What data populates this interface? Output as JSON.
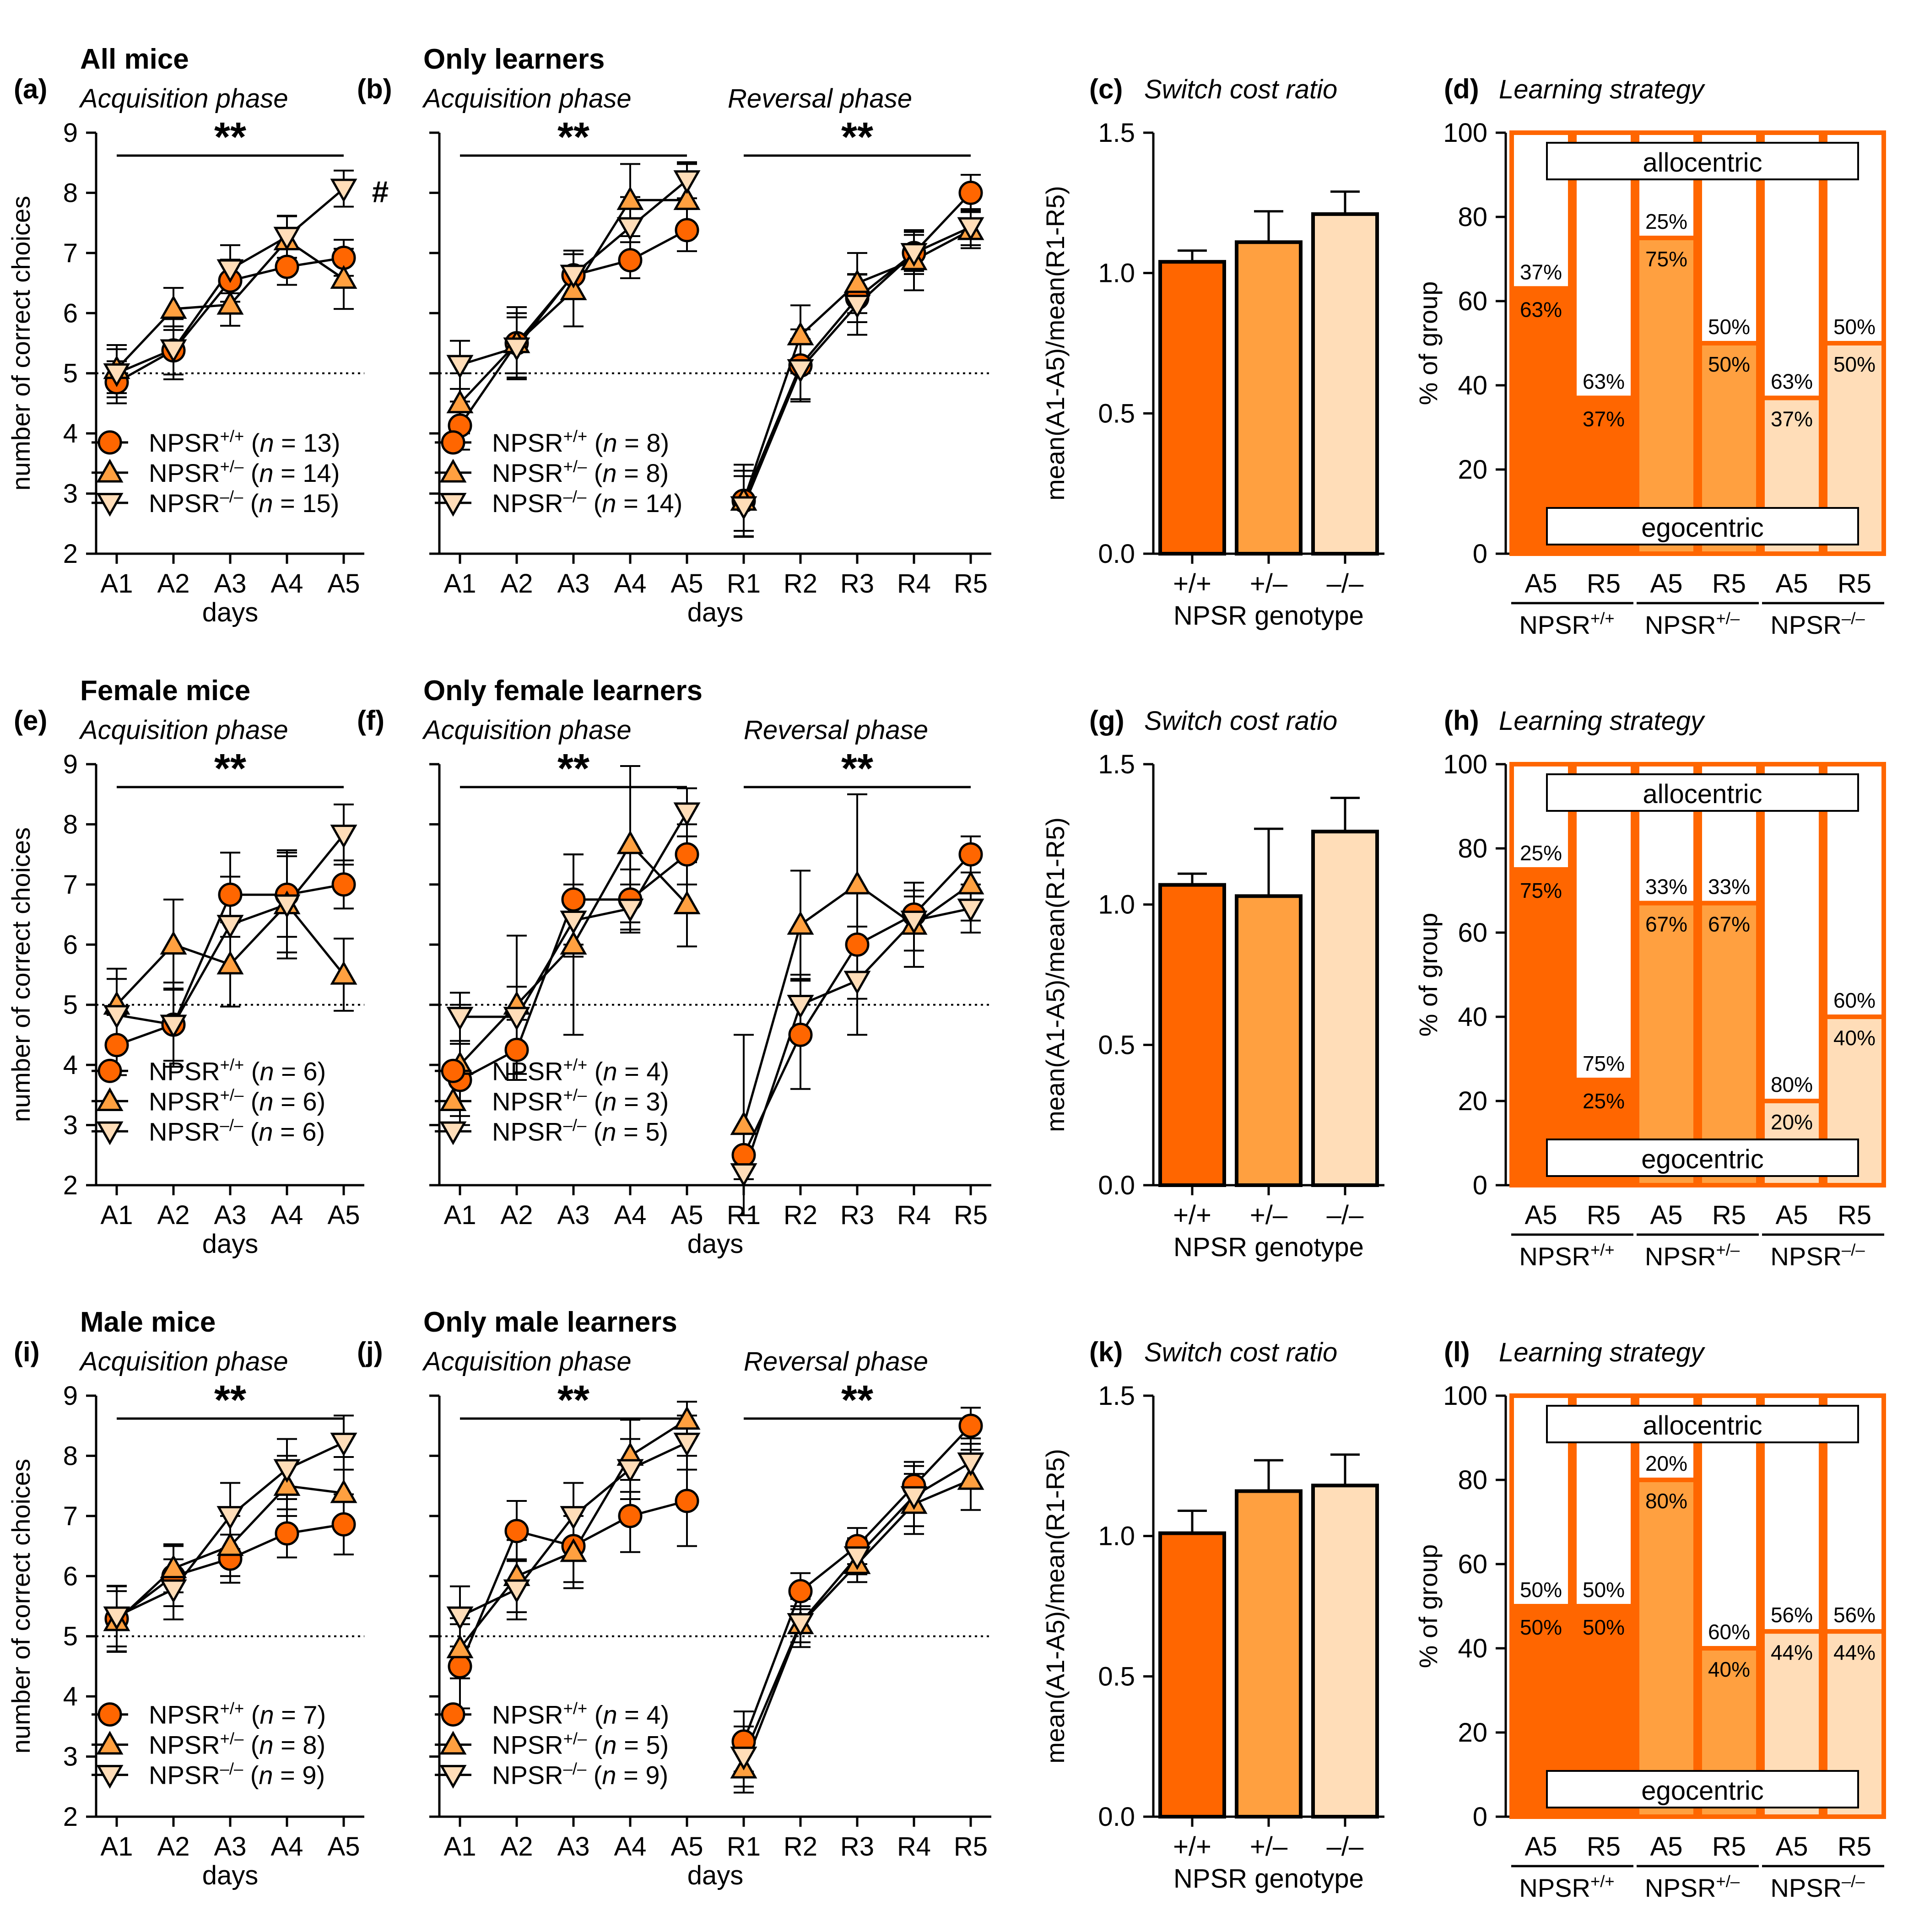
{
  "colors": {
    "wt": "#FF6600",
    "het": "#FFA040",
    "ko": "#FFDDB8",
    "line": "#000000"
  },
  "genotype_labels": {
    "wt": "NPSR+/+",
    "het": "NPSR+/–",
    "ko": "NPSR–/–",
    "sup_wt": "+/+",
    "sup_het": "+/–",
    "sup_ko": "–/–"
  },
  "chart_data": [
    {
      "id": "a",
      "type": "line",
      "letter": "(a)",
      "title": "All mice",
      "subtitle": "Acquisition phase",
      "xlabel": "days",
      "ylabel": "number of correct choices",
      "ylim": [
        2,
        9
      ],
      "ticks": [
        2,
        3,
        4,
        5,
        6,
        7,
        8,
        9
      ],
      "chance": 5,
      "phase_labels": [],
      "sig": [
        {
          "text": "**",
          "from": "A1",
          "to": "A5"
        }
      ],
      "hash": "#",
      "categories": [
        "A1",
        "A2",
        "A3",
        "A4",
        "A5"
      ],
      "series": [
        {
          "geno": "wt",
          "n": "13",
          "values": [
            4.85,
            5.38,
            6.54,
            6.77,
            6.92
          ],
          "err": [
            0.35,
            0.4,
            0.35,
            0.3,
            0.3
          ]
        },
        {
          "geno": "het",
          "n": "14",
          "values": [
            5.07,
            6.07,
            6.14,
            7.21,
            6.57
          ],
          "err": [
            0.4,
            0.35,
            0.35,
            0.4,
            0.5
          ]
        },
        {
          "geno": "ko",
          "n": "15",
          "values": [
            5.0,
            5.4,
            6.73,
            7.27,
            8.07
          ],
          "err": [
            0.4,
            0.5,
            0.4,
            0.35,
            0.3
          ]
        }
      ]
    },
    {
      "id": "b",
      "type": "line",
      "letter": "(b)",
      "title": "Only learners",
      "subtitle": "",
      "xlabel": "days",
      "ylabel": "",
      "ylim": [
        2,
        9
      ],
      "ticks": [
        2,
        3,
        4,
        5,
        6,
        7,
        8,
        9
      ],
      "chance": 5,
      "phase_labels": [
        "Acquisition phase",
        "Reversal phase"
      ],
      "sig": [
        {
          "text": "**",
          "from": "A1",
          "to": "A5"
        },
        {
          "text": "**",
          "from": "R1",
          "to": "R5"
        }
      ],
      "categories": [
        "A1",
        "A2",
        "A3",
        "A4",
        "A5",
        "R1",
        "R2",
        "R3",
        "R4",
        "R5"
      ],
      "series": [
        {
          "geno": "wt",
          "n": "8",
          "values": [
            4.13,
            5.5,
            6.63,
            6.88,
            7.38,
            2.88,
            5.13,
            6.25,
            7.0,
            8.0
          ],
          "err": [
            0.4,
            0.5,
            0.35,
            0.3,
            0.35,
            0.5,
            0.6,
            0.4,
            0.35,
            0.3
          ]
        },
        {
          "geno": "het",
          "n": "8",
          "values": [
            4.5,
            5.5,
            6.38,
            7.88,
            7.88,
            2.88,
            5.63,
            6.5,
            6.88,
            7.38
          ],
          "err": [
            0.5,
            0.6,
            0.6,
            0.6,
            0.6,
            0.6,
            0.5,
            0.5,
            0.5,
            0.3
          ]
        },
        {
          "geno": "ko",
          "n": "14",
          "values": [
            5.14,
            5.43,
            6.64,
            7.43,
            8.21,
            2.79,
            5.07,
            6.14,
            7.0,
            7.43
          ],
          "err": [
            0.4,
            0.5,
            0.4,
            0.5,
            0.3,
            0.5,
            0.5,
            0.5,
            0.3,
            0.3
          ]
        }
      ]
    },
    {
      "id": "c",
      "type": "bar",
      "letter": "(c)",
      "title": "Switch cost ratio",
      "xlabel": "NPSR genotype",
      "ylabel": "mean(A1-A5)/mean(R1-R5)",
      "ylim": [
        0,
        1.5
      ],
      "ticks": [
        "0.0",
        "0.5",
        "1.0",
        "1.5"
      ],
      "categories": [
        "+/+",
        "+/–",
        "–/–"
      ],
      "values": [
        1.04,
        1.11,
        1.21
      ],
      "err": [
        0.04,
        0.11,
        0.08
      ]
    },
    {
      "id": "d",
      "type": "stacked-bar",
      "letter": "(d)",
      "title": "Learning strategy",
      "ylabel": "% of group",
      "ylim": [
        0,
        100
      ],
      "ticks": [
        0,
        20,
        40,
        60,
        80,
        100
      ],
      "top_label": "allocentric",
      "bottom_label": "egocentric",
      "categories": [
        "A5",
        "R5",
        "A5",
        "R5",
        "A5",
        "R5"
      ],
      "group_labels": [
        "NPSR+/+",
        "NPSR+/–",
        "NPSR–/–"
      ],
      "ego": [
        63,
        37,
        75,
        50,
        37,
        50
      ],
      "allo": [
        37,
        63,
        25,
        50,
        63,
        50
      ]
    },
    {
      "id": "e",
      "type": "line",
      "letter": "(e)",
      "title": "Female mice",
      "subtitle": "Acquisition phase",
      "xlabel": "days",
      "ylabel": "number of correct choices",
      "ylim": [
        2,
        9
      ],
      "ticks": [
        2,
        3,
        4,
        5,
        6,
        7,
        8,
        9
      ],
      "chance": 5,
      "phase_labels": [],
      "sig": [
        {
          "text": "**",
          "from": "A1",
          "to": "A5"
        }
      ],
      "categories": [
        "A1",
        "A2",
        "A3",
        "A4",
        "A5"
      ],
      "series": [
        {
          "geno": "wt",
          "n": "6",
          "values": [
            4.33,
            4.67,
            6.83,
            6.83,
            7.0
          ],
          "err": [
            0.5,
            0.6,
            0.7,
            0.7,
            0.4
          ]
        },
        {
          "geno": "het",
          "n": "6",
          "values": [
            5.0,
            6.0,
            5.67,
            6.67,
            5.5
          ],
          "err": [
            0.6,
            0.75,
            0.7,
            0.9,
            0.6
          ]
        },
        {
          "geno": "ko",
          "n": "6",
          "values": [
            4.83,
            4.67,
            6.33,
            6.67,
            7.83
          ],
          "err": [
            0.6,
            0.7,
            0.8,
            0.8,
            0.5
          ]
        }
      ]
    },
    {
      "id": "f",
      "type": "line",
      "letter": "(f)",
      "title": "Only female learners",
      "subtitle": "",
      "xlabel": "days",
      "ylabel": "",
      "ylim": [
        2,
        9
      ],
      "ticks": [
        2,
        3,
        4,
        5,
        6,
        7,
        8,
        9
      ],
      "chance": 5,
      "phase_labels": [
        "Acquisition phase",
        "Reversal phase"
      ],
      "sig": [
        {
          "text": "**",
          "from": "A1",
          "to": "A5"
        },
        {
          "text": "**",
          "from": "R1",
          "to": "R5"
        }
      ],
      "categories": [
        "A1",
        "A2",
        "A3",
        "A4",
        "A5",
        "R1",
        "R2",
        "R3",
        "R4",
        "R5"
      ],
      "series": [
        {
          "geno": "wt",
          "n": "4",
          "values": [
            3.75,
            4.25,
            6.75,
            6.75,
            7.5,
            2.5,
            4.5,
            6.0,
            6.5,
            7.5
          ],
          "err": [
            0.6,
            0.5,
            0.75,
            0.5,
            0.5,
            0.4,
            0.9,
            0.9,
            0.3,
            0.3
          ]
        },
        {
          "geno": "het",
          "n": "3",
          "values": [
            4.0,
            5.0,
            6.0,
            7.67,
            6.67,
            3.0,
            6.33,
            7.0,
            6.33,
            7.0
          ],
          "err": [
            1.0,
            1.15,
            1.5,
            1.3,
            0.7,
            1.5,
            0.9,
            1.5,
            0.7,
            0.6
          ]
        },
        {
          "geno": "ko",
          "n": "5",
          "values": [
            4.8,
            4.8,
            6.4,
            6.6,
            8.2,
            2.2,
            5.0,
            5.4,
            6.4,
            6.6
          ],
          "err": [
            0.4,
            0.5,
            0.6,
            0.4,
            0.4,
            0.2,
            0.5,
            0.9,
            0.5,
            0.4
          ]
        }
      ]
    },
    {
      "id": "g",
      "type": "bar",
      "letter": "(g)",
      "title": "Switch cost ratio",
      "xlabel": "NPSR genotype",
      "ylabel": "mean(A1-A5)/mean(R1-R5)",
      "ylim": [
        0,
        1.5
      ],
      "ticks": [
        "0.0",
        "0.5",
        "1.0",
        "1.5"
      ],
      "categories": [
        "+/+",
        "+/–",
        "–/–"
      ],
      "values": [
        1.07,
        1.03,
        1.26
      ],
      "err": [
        0.04,
        0.24,
        0.12
      ]
    },
    {
      "id": "h",
      "type": "stacked-bar",
      "letter": "(h)",
      "title": "Learning strategy",
      "ylabel": "% of group",
      "ylim": [
        0,
        100
      ],
      "ticks": [
        0,
        20,
        40,
        60,
        80,
        100
      ],
      "top_label": "allocentric",
      "bottom_label": "egocentric",
      "categories": [
        "A5",
        "R5",
        "A5",
        "R5",
        "A5",
        "R5"
      ],
      "group_labels": [
        "NPSR+/+",
        "NPSR+/–",
        "NPSR–/–"
      ],
      "ego": [
        75,
        25,
        67,
        67,
        20,
        40
      ],
      "allo": [
        25,
        75,
        33,
        33,
        80,
        60
      ]
    },
    {
      "id": "i",
      "type": "line",
      "letter": "(i)",
      "title": "Male mice",
      "subtitle": "Acquisition phase",
      "xlabel": "days",
      "ylabel": "number of correct choices",
      "ylim": [
        2,
        9
      ],
      "ticks": [
        2,
        3,
        4,
        5,
        6,
        7,
        8,
        9
      ],
      "chance": 5,
      "phase_labels": [],
      "sig": [
        {
          "text": "**",
          "from": "A1",
          "to": "A5"
        }
      ],
      "categories": [
        "A1",
        "A2",
        "A3",
        "A4",
        "A5"
      ],
      "series": [
        {
          "geno": "wt",
          "n": "7",
          "values": [
            5.29,
            6.0,
            6.29,
            6.71,
            6.86
          ],
          "err": [
            0.55,
            0.5,
            0.4,
            0.4,
            0.5
          ]
        },
        {
          "geno": "het",
          "n": "8",
          "values": [
            5.25,
            6.13,
            6.5,
            7.5,
            7.38
          ],
          "err": [
            0.5,
            0.4,
            0.5,
            0.5,
            0.6
          ]
        },
        {
          "geno": "ko",
          "n": "9",
          "values": [
            5.33,
            5.78,
            7.0,
            7.78,
            8.22
          ],
          "err": [
            0.5,
            0.5,
            0.55,
            0.5,
            0.45
          ]
        }
      ]
    },
    {
      "id": "j",
      "type": "line",
      "letter": "(j)",
      "title": "Only male learners",
      "subtitle": "",
      "xlabel": "days",
      "ylabel": "",
      "ylim": [
        2,
        9
      ],
      "ticks": [
        2,
        3,
        4,
        5,
        6,
        7,
        8,
        9
      ],
      "chance": 5,
      "phase_labels": [
        "Acquisition phase",
        "Reversal phase"
      ],
      "sig": [
        {
          "text": "**",
          "from": "A1",
          "to": "A5"
        },
        {
          "text": "**",
          "from": "R1",
          "to": "R5"
        }
      ],
      "categories": [
        "A1",
        "A2",
        "A3",
        "A4",
        "A5",
        "R1",
        "R2",
        "R3",
        "R4",
        "R5"
      ],
      "series": [
        {
          "geno": "wt",
          "n": "4",
          "values": [
            4.5,
            6.75,
            6.5,
            7.0,
            7.25,
            3.25,
            5.75,
            6.5,
            7.5,
            8.5
          ],
          "err": [
            0.7,
            0.5,
            0.6,
            0.6,
            0.75,
            0.5,
            0.3,
            0.3,
            0.4,
            0.3
          ]
        },
        {
          "geno": "het",
          "n": "5",
          "values": [
            4.8,
            6.0,
            6.4,
            8.0,
            8.6,
            2.8,
            5.2,
            6.2,
            7.2,
            7.6
          ],
          "err": [
            0.5,
            0.6,
            0.6,
            0.6,
            0.3,
            0.4,
            0.3,
            0.3,
            0.5,
            0.5
          ]
        },
        {
          "geno": "ko",
          "n": "9",
          "values": [
            5.33,
            5.78,
            7.0,
            7.78,
            8.22,
            3.0,
            5.22,
            6.33,
            7.33,
            7.89
          ],
          "err": [
            0.5,
            0.5,
            0.55,
            0.5,
            0.45,
            0.5,
            0.4,
            0.3,
            0.5,
            0.4
          ]
        }
      ]
    },
    {
      "id": "k",
      "type": "bar",
      "letter": "(k)",
      "title": "Switch cost ratio",
      "xlabel": "NPSR genotype",
      "ylabel": "mean(A1-A5)/mean(R1-R5)",
      "ylim": [
        0,
        1.5
      ],
      "ticks": [
        "0.0",
        "0.5",
        "1.0",
        "1.5"
      ],
      "categories": [
        "+/+",
        "+/–",
        "–/–"
      ],
      "values": [
        1.01,
        1.16,
        1.18
      ],
      "err": [
        0.08,
        0.11,
        0.11
      ]
    },
    {
      "id": "l",
      "type": "stacked-bar",
      "letter": "(l)",
      "title": "Learning strategy",
      "ylabel": "% of group",
      "ylim": [
        0,
        100
      ],
      "ticks": [
        0,
        20,
        40,
        60,
        80,
        100
      ],
      "top_label": "allocentric",
      "bottom_label": "egocentric",
      "categories": [
        "A5",
        "R5",
        "A5",
        "R5",
        "A5",
        "R5"
      ],
      "group_labels": [
        "NPSR+/+",
        "NPSR+/–",
        "NPSR–/–"
      ],
      "ego": [
        50,
        50,
        80,
        40,
        44,
        44
      ],
      "allo": [
        50,
        50,
        20,
        60,
        56,
        56
      ]
    }
  ]
}
